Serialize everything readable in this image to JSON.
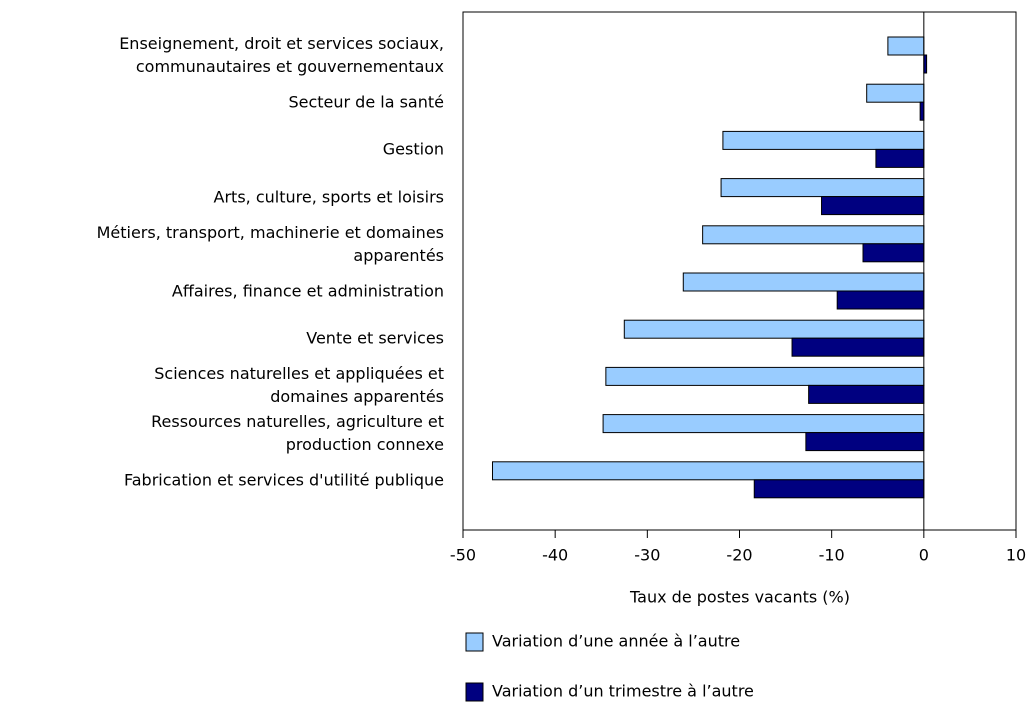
{
  "chart_data": {
    "type": "bar",
    "orientation": "horizontal",
    "categories": [
      "Enseignement, droit et services sociaux,\ncommunautaires et gouvernementaux",
      "Secteur de la santé",
      "Gestion",
      "Arts, culture, sports et loisirs",
      "Métiers, transport, machinerie et domaines\napparentés",
      "Affaires, finance et administration",
      "Vente et services",
      "Sciences naturelles et appliquées et\ndomaines apparentés",
      "Ressources naturelles, agriculture et\nproduction connexe",
      "Fabrication et services d'utilité publique"
    ],
    "series": [
      {
        "name": "Variation d’une année à l’autre",
        "color": "#99ccff",
        "values": [
          -3.9,
          -6.2,
          -21.8,
          -22.0,
          -24.0,
          -26.1,
          -32.5,
          -34.5,
          -34.8,
          -46.8
        ]
      },
      {
        "name": "Variation d’un trimestre à l’autre",
        "color": "#000080",
        "values": [
          0.3,
          -0.4,
          -5.2,
          -11.1,
          -6.6,
          -9.4,
          -14.3,
          -12.5,
          -12.8,
          -18.4
        ]
      }
    ],
    "xlabel": "Taux de postes vacants (%)",
    "xlim": [
      -50,
      10
    ],
    "xticks": [
      -50,
      -40,
      -30,
      -20,
      -10,
      0,
      10
    ]
  }
}
